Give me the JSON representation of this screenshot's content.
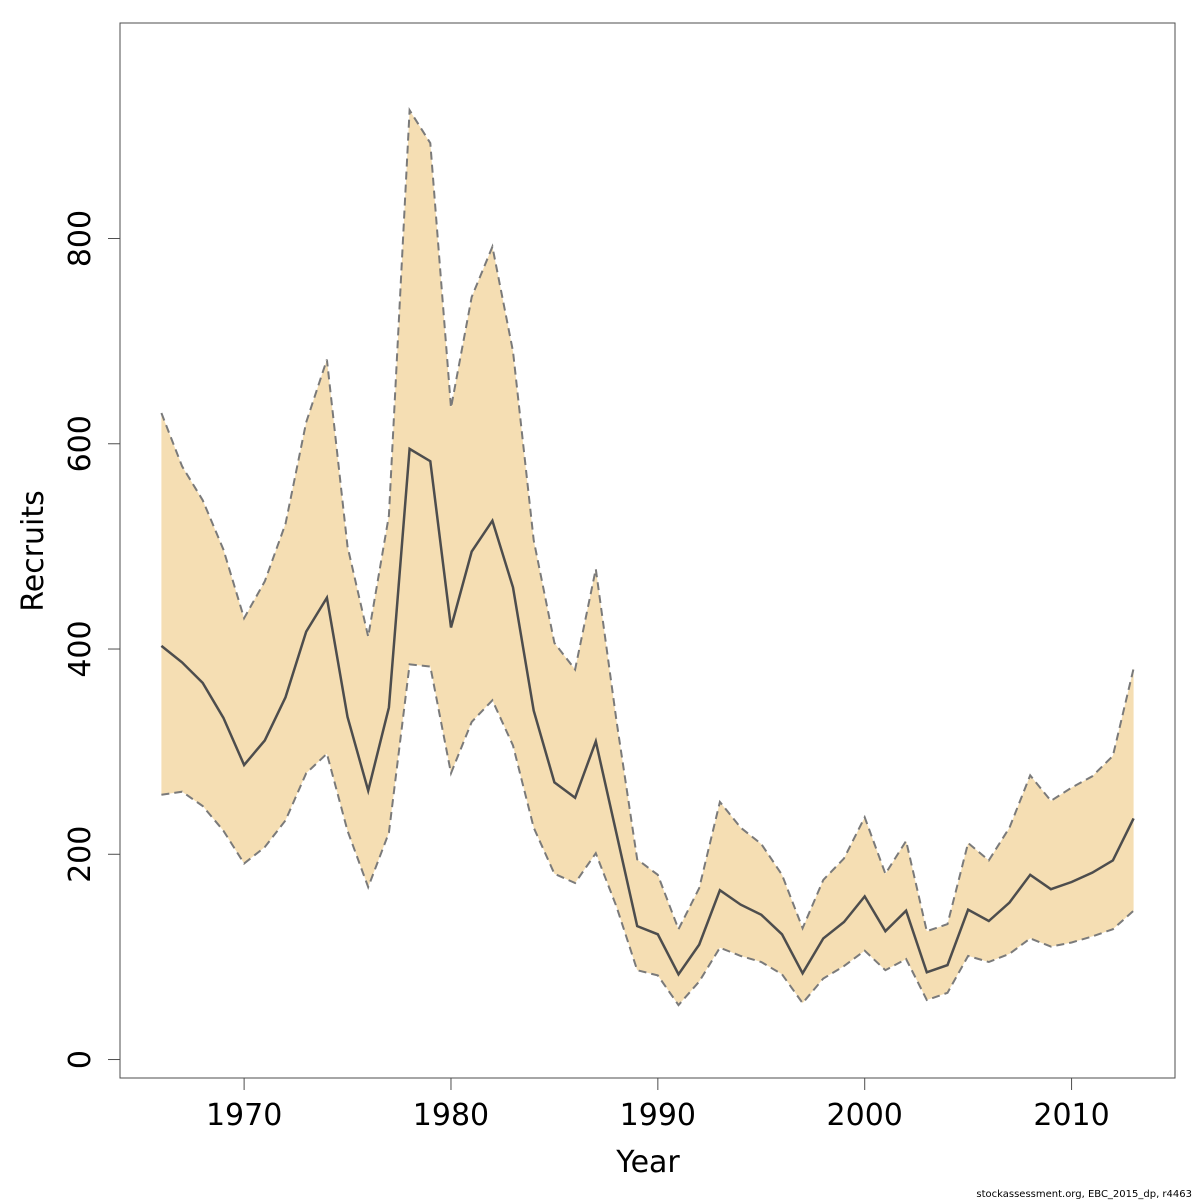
{
  "chart_data": {
    "type": "area",
    "xlabel": "Year",
    "ylabel": "Recruits",
    "xlim": [
      1964,
      2015
    ],
    "ylim": [
      -18,
      1010
    ],
    "x_ticks": [
      1970,
      1980,
      1990,
      2000,
      2010
    ],
    "y_ticks": [
      0,
      200,
      400,
      600,
      800
    ],
    "grid": false,
    "band_color": "#f5deb3",
    "line_color": "#4d4d4d",
    "bound_color": "#7a7a7a",
    "x": [
      1966,
      1967,
      1968,
      1969,
      1970,
      1971,
      1972,
      1973,
      1974,
      1975,
      1976,
      1977,
      1978,
      1979,
      1980,
      1981,
      1982,
      1983,
      1984,
      1985,
      1986,
      1987,
      1988,
      1989,
      1990,
      1991,
      1992,
      1993,
      1994,
      1995,
      1996,
      1997,
      1998,
      1999,
      2000,
      2001,
      2002,
      2003,
      2004,
      2005,
      2006,
      2007,
      2008,
      2009,
      2010,
      2011,
      2012,
      2013
    ],
    "series": [
      {
        "role": "estimate",
        "values": [
          403,
          387,
          367,
          333,
          287,
          311,
          353,
          417,
          450,
          334,
          262,
          343,
          595,
          583,
          421,
          495,
          525,
          460,
          340,
          270,
          255,
          310,
          220,
          130,
          122,
          83,
          112,
          165,
          151,
          141,
          122,
          84,
          118,
          134,
          159,
          125,
          145,
          85,
          92,
          146,
          135,
          153,
          180,
          166,
          173,
          182,
          194,
          235
        ]
      },
      {
        "role": "upper",
        "values": [
          630,
          578,
          545,
          497,
          430,
          466,
          522,
          621,
          682,
          500,
          412,
          530,
          925,
          893,
          635,
          743,
          792,
          690,
          506,
          406,
          380,
          478,
          330,
          195,
          180,
          127,
          167,
          251,
          226,
          210,
          180,
          128,
          175,
          196,
          236,
          181,
          213,
          125,
          132,
          211,
          194,
          226,
          277,
          252,
          265,
          276,
          296,
          381
        ]
      },
      {
        "role": "lower",
        "values": [
          258,
          261,
          247,
          223,
          191,
          207,
          233,
          279,
          298,
          223,
          168,
          221,
          385,
          383,
          279,
          329,
          350,
          306,
          226,
          181,
          172,
          201,
          149,
          87,
          82,
          53,
          76,
          109,
          101,
          95,
          83,
          55,
          79,
          91,
          106,
          87,
          98,
          58,
          65,
          101,
          95,
          103,
          118,
          110,
          114,
          120,
          127,
          145
        ]
      }
    ]
  },
  "credit": "stockassessment.org, EBC_2015_dp, r4463"
}
